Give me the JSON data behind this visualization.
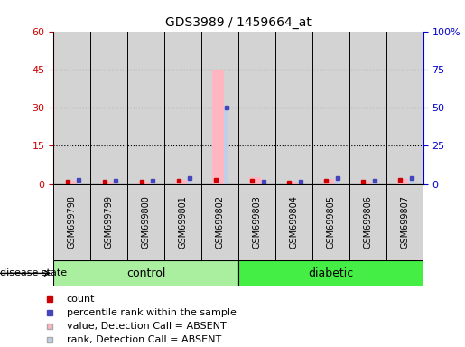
{
  "title": "GDS3989 / 1459664_at",
  "samples": [
    "GSM699798",
    "GSM699799",
    "GSM699800",
    "GSM699801",
    "GSM699802",
    "GSM699803",
    "GSM699804",
    "GSM699805",
    "GSM699806",
    "GSM699807"
  ],
  "n_control": 5,
  "n_diabetic": 5,
  "value_bars": [
    1.2,
    1.0,
    1.0,
    1.5,
    45.0,
    2.5,
    0.8,
    1.8,
    1.0,
    2.0
  ],
  "rank_bars": [
    1.5,
    1.2,
    1.2,
    2.2,
    30.0,
    1.0,
    1.0,
    2.2,
    1.2,
    2.2
  ],
  "count_vals": [
    1.0,
    0.8,
    0.8,
    1.3,
    1.5,
    1.2,
    0.5,
    1.2,
    0.8,
    1.5
  ],
  "percentile_vals": [
    1.5,
    1.2,
    1.2,
    2.2,
    30.0,
    1.0,
    1.0,
    2.2,
    1.2,
    2.2
  ],
  "left_ylim": [
    0,
    60
  ],
  "right_ylim": [
    0,
    100
  ],
  "left_yticks": [
    0,
    15,
    30,
    45,
    60
  ],
  "right_yticks": [
    0,
    25,
    50,
    75,
    100
  ],
  "right_yticklabels": [
    "0",
    "25",
    "50",
    "75",
    "100%"
  ],
  "value_color": "#ffb6c1",
  "rank_color": "#c0cfe8",
  "count_color": "#cc0000",
  "percentile_color": "#4444bb",
  "control_color": "#aaeea0",
  "diabetic_color": "#44ee44",
  "sample_bg": "#d3d3d3",
  "left_tick_color": "#cc0000",
  "right_tick_color": "#0000cc",
  "title_fontsize": 10,
  "legend_fontsize": 8,
  "sample_fontsize": 7
}
